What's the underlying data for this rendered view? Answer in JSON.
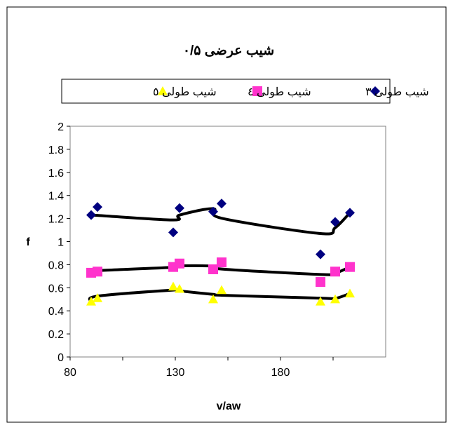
{
  "chart_data": {
    "type": "scatter",
    "title": "شیب عرضی ۰/۵",
    "xlabel": "v/aw",
    "ylabel": "f",
    "xlim": [
      80,
      230
    ],
    "ylim": [
      0,
      2
    ],
    "x_ticks": [
      "80",
      "130",
      "180"
    ],
    "y_ticks": [
      "0",
      "0.2",
      "0.4",
      "0.6",
      "0.8",
      "1",
      "1.2",
      "1.4",
      "1.6",
      "1.8",
      "2"
    ],
    "grid": false,
    "legend_position": "top",
    "trendline": "smooth",
    "series": [
      {
        "name": "شیب طولی ۳",
        "marker": "diamond",
        "color": "#000080",
        "x": [
          90,
          93,
          129,
          132,
          148,
          152,
          199,
          206,
          213
        ],
        "y": [
          1.23,
          1.3,
          1.08,
          1.29,
          1.26,
          1.33,
          0.89,
          1.17,
          1.25
        ]
      },
      {
        "name": "شیب طولی ٤",
        "marker": "square",
        "color": "#ff33cc",
        "x": [
          90,
          93,
          129,
          132,
          148,
          152,
          199,
          206,
          213
        ],
        "y": [
          0.73,
          0.74,
          0.78,
          0.81,
          0.76,
          0.82,
          0.65,
          0.74,
          0.78
        ]
      },
      {
        "name": "شیب طولی ٥",
        "marker": "triangle",
        "color": "#ffff00",
        "x": [
          90,
          93,
          129,
          132,
          148,
          152,
          199,
          206,
          213
        ],
        "y": [
          0.48,
          0.51,
          0.61,
          0.59,
          0.5,
          0.58,
          0.48,
          0.5,
          0.55
        ]
      }
    ]
  }
}
